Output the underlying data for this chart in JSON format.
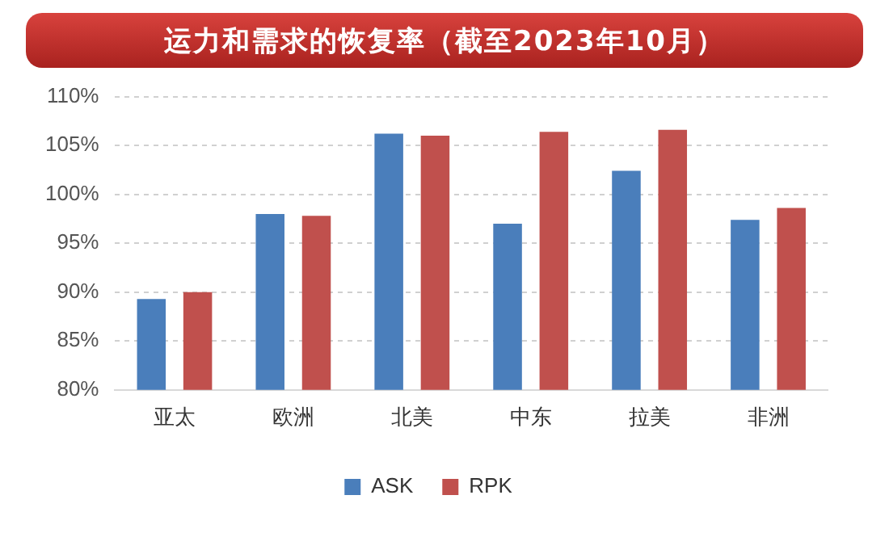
{
  "chart_data": {
    "type": "bar",
    "title": "运力和需求的恢复率（截至2023年10月）",
    "categories": [
      "亚太",
      "欧洲",
      "北美",
      "中东",
      "拉美",
      "非洲"
    ],
    "series": [
      {
        "name": "ASK",
        "color": "#4a7ebb",
        "values": [
          89.3,
          98.0,
          106.2,
          97.0,
          102.4,
          97.4
        ]
      },
      {
        "name": "RPK",
        "color": "#c0504d",
        "values": [
          90.0,
          97.8,
          106.0,
          106.4,
          106.6,
          98.6
        ]
      }
    ],
    "ylim": [
      80,
      110
    ],
    "yticks": [
      {
        "value": 80,
        "label": "80%"
      },
      {
        "value": 85,
        "label": "85%"
      },
      {
        "value": 90,
        "label": "90%"
      },
      {
        "value": 95,
        "label": "95%"
      },
      {
        "value": 100,
        "label": "100%"
      },
      {
        "value": 105,
        "label": "105%"
      },
      {
        "value": 110,
        "label": "110%"
      }
    ],
    "grid": "y",
    "legend": "bottom"
  }
}
